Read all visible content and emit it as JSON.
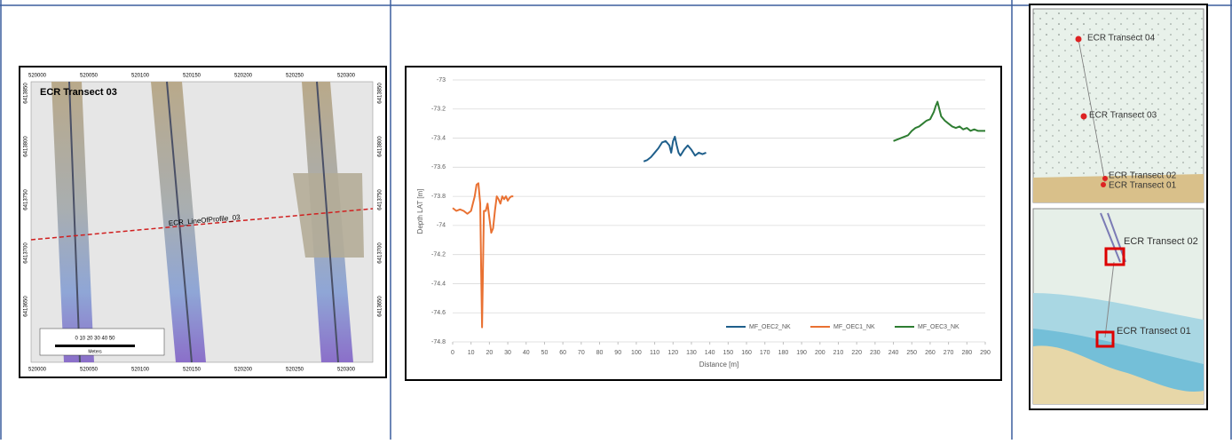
{
  "left_map": {
    "title": "ECR Transect 03",
    "profile_label": "ECR_LineOfProfile_03",
    "easting_labels": [
      "520000",
      "520050",
      "520100",
      "520150",
      "520200",
      "520250",
      "520300"
    ],
    "northing_labels": [
      "6413850",
      "6413800",
      "6413750",
      "6413700",
      "6413650"
    ],
    "scale_numbers": "0  10  20  30  40  50",
    "scale_unit": "Meters"
  },
  "chart_data": {
    "type": "line",
    "y_label": "Depth LAT [m]",
    "x_label": "Distance [m]",
    "xlim": [
      0,
      290
    ],
    "xticks": [
      0,
      10,
      20,
      30,
      40,
      50,
      60,
      70,
      80,
      90,
      100,
      110,
      120,
      130,
      140,
      150,
      160,
      170,
      180,
      190,
      200,
      210,
      220,
      230,
      240,
      250,
      260,
      270,
      280,
      290
    ],
    "ylim": [
      -74.8,
      -73
    ],
    "yticks": [
      -73,
      -73.2,
      -73.4,
      -73.6,
      -73.8,
      -74,
      -74.2,
      -74.4,
      -74.6,
      -74.8
    ],
    "grid": true,
    "legend": "bottom-right",
    "series": [
      {
        "name": "MF_OEC2_NK",
        "color": "#1f5f8b",
        "x": [
          104,
          106,
          108,
          110,
          112,
          114,
          116,
          118,
          119,
          120,
          121,
          122,
          123,
          124,
          126,
          128,
          130,
          132,
          134,
          136,
          138
        ],
        "values": [
          -73.56,
          -73.55,
          -73.53,
          -73.5,
          -73.47,
          -73.43,
          -73.42,
          -73.45,
          -73.5,
          -73.42,
          -73.39,
          -73.45,
          -73.5,
          -73.52,
          -73.48,
          -73.45,
          -73.48,
          -73.52,
          -73.5,
          -73.51,
          -73.5
        ]
      },
      {
        "name": "MF_OEC1_NK",
        "color": "#e97132",
        "x": [
          0,
          2,
          4,
          6,
          8,
          10,
          11,
          12,
          13,
          14,
          15,
          15.5,
          16,
          16.5,
          17,
          18,
          19,
          20,
          21,
          22,
          23,
          24,
          25,
          26,
          27,
          28,
          29,
          30,
          31,
          32,
          33
        ],
        "values": [
          -73.88,
          -73.9,
          -73.89,
          -73.9,
          -73.92,
          -73.9,
          -73.85,
          -73.8,
          -73.72,
          -73.71,
          -73.85,
          -74.3,
          -74.7,
          -74.3,
          -73.9,
          -73.9,
          -73.85,
          -73.95,
          -74.05,
          -74.02,
          -73.9,
          -73.8,
          -73.82,
          -73.85,
          -73.8,
          -73.82,
          -73.8,
          -73.83,
          -73.81,
          -73.8,
          -73.8
        ]
      },
      {
        "name": "MF_OEC3_NK",
        "color": "#2e7d32",
        "x": [
          240,
          242,
          244,
          246,
          248,
          250,
          252,
          254,
          256,
          258,
          260,
          262,
          263,
          264,
          265,
          266,
          268,
          270,
          272,
          274,
          276,
          278,
          280,
          282,
          284,
          286,
          288,
          290
        ],
        "values": [
          -73.42,
          -73.41,
          -73.4,
          -73.39,
          -73.38,
          -73.35,
          -73.33,
          -73.32,
          -73.3,
          -73.28,
          -73.27,
          -73.22,
          -73.18,
          -73.15,
          -73.2,
          -73.25,
          -73.28,
          -73.3,
          -73.32,
          -73.33,
          -73.32,
          -73.34,
          -73.33,
          -73.35,
          -73.34,
          -73.35,
          -73.35,
          -73.35
        ]
      }
    ]
  },
  "right_maps": {
    "top_labels": [
      "ECR Transect 04",
      "ECR Transect 03",
      "ECR Transect 02",
      "ECR Transect 01"
    ],
    "bottom_labels": [
      "ECR Transect 02",
      "ECR Transect 01"
    ]
  }
}
